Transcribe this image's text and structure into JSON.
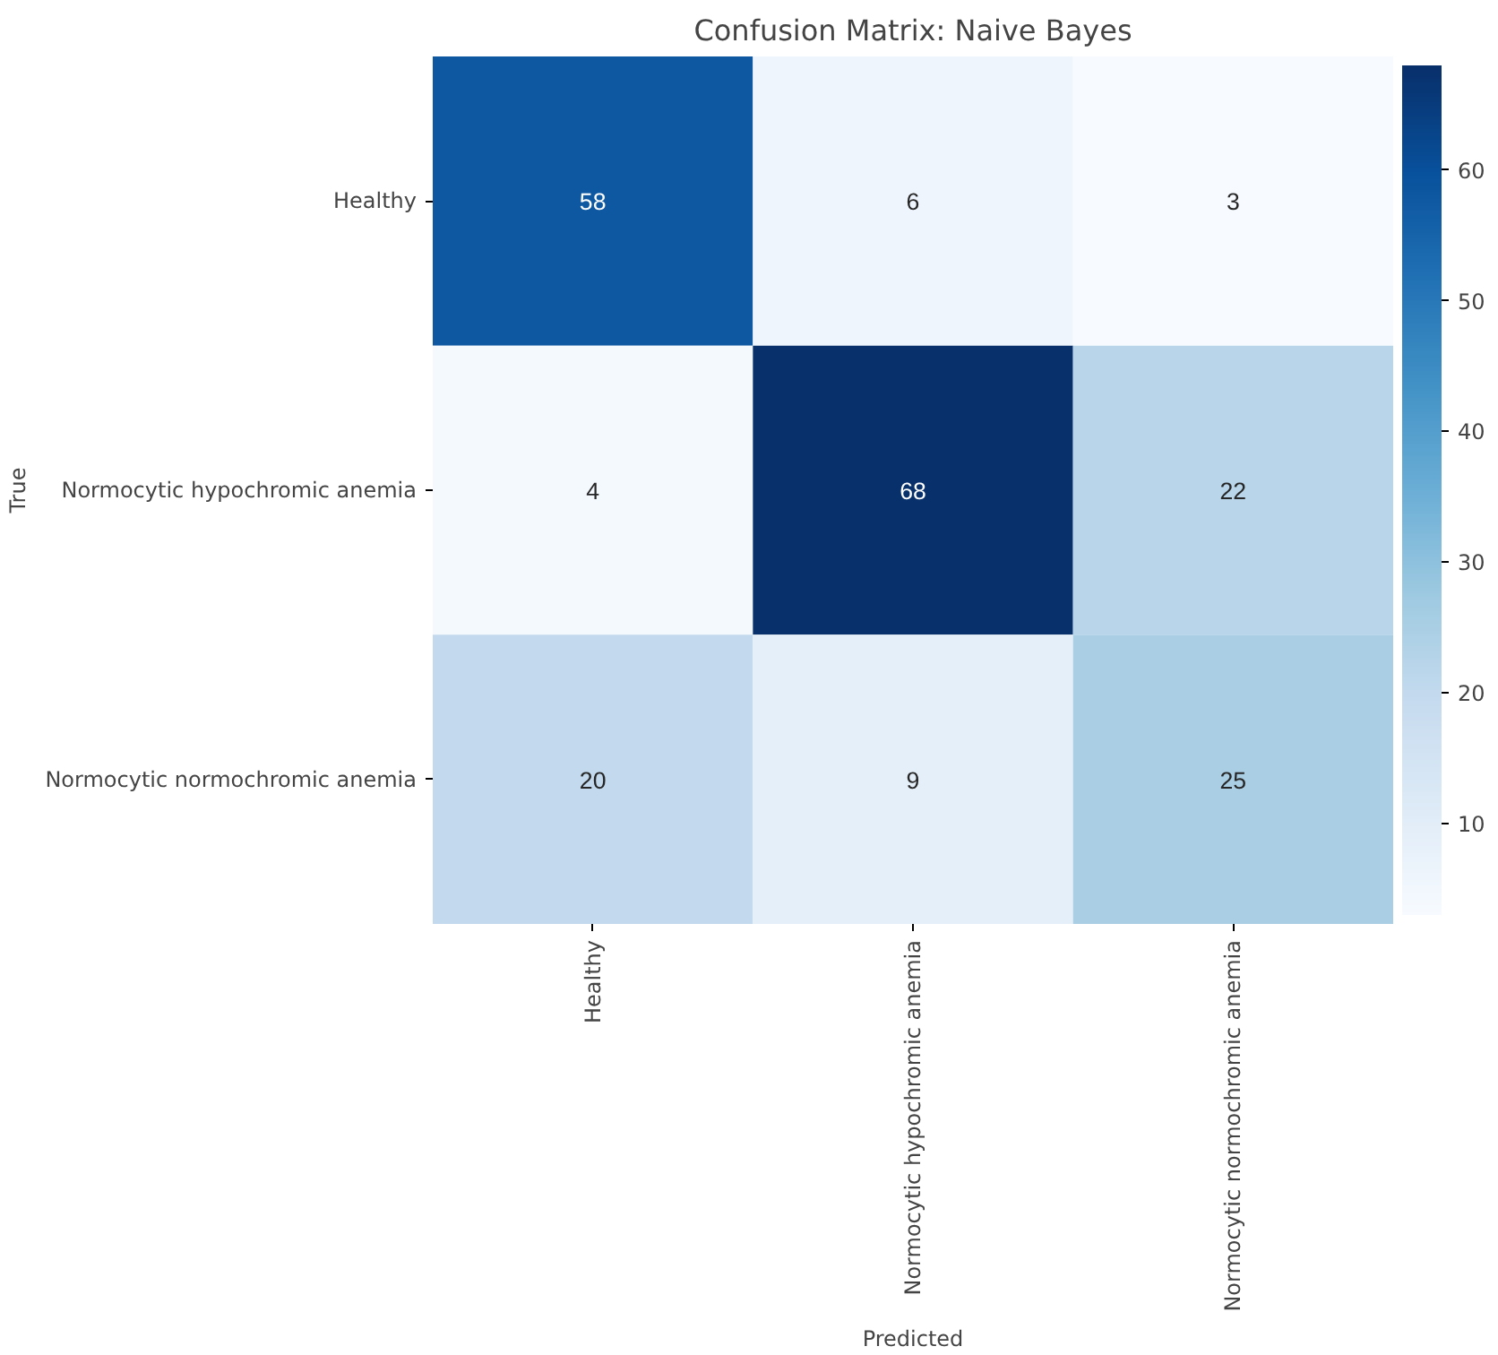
{
  "chart_data": {
    "type": "heatmap",
    "title": "Confusion Matrix: Naive Bayes",
    "xlabel": "Predicted",
    "ylabel": "True",
    "categories": [
      "Healthy",
      "Normocytic hypochromic anemia",
      "Normocytic normochromic anemia"
    ],
    "y_categories": [
      "Healthy",
      "Normocytic hypochromic anemia",
      "Normocytic normochromic anemia"
    ],
    "cells": [
      [
        58,
        6,
        3
      ],
      [
        4,
        68,
        22
      ],
      [
        20,
        9,
        25
      ]
    ],
    "data_labels": true,
    "clim": [
      3,
      68
    ],
    "cticks": [
      10,
      20,
      30,
      40,
      50,
      60
    ]
  }
}
